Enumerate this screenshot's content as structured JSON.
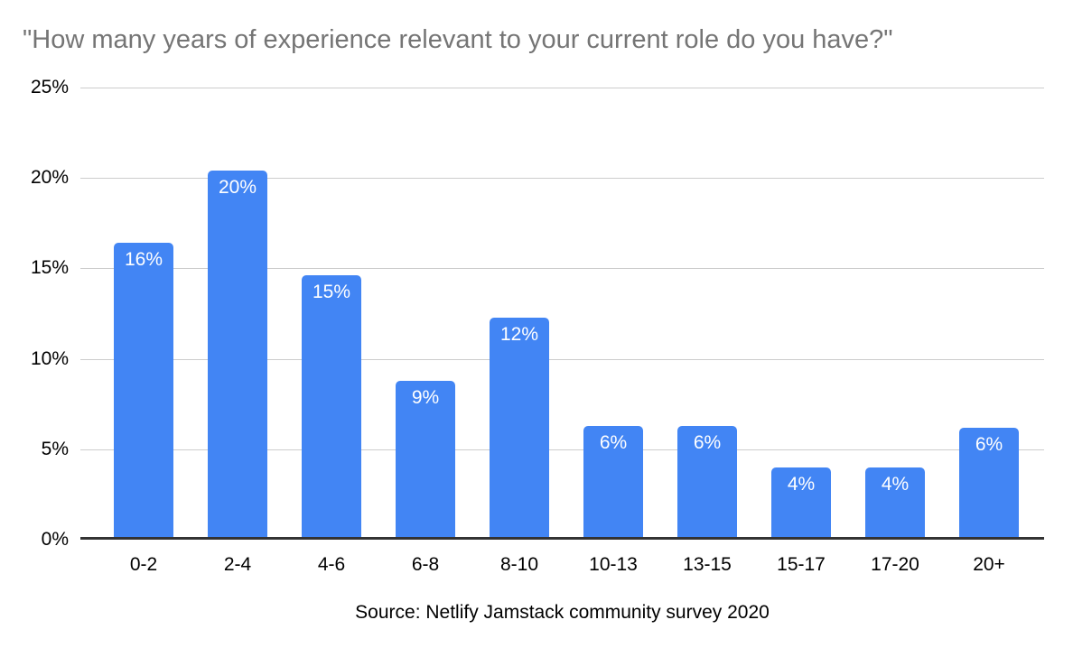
{
  "title": "\"How many years of experience relevant to your current role do you have?\"",
  "source": "Source: Netlify Jamstack community survey 2020",
  "colors": {
    "bar": "#4285f4",
    "title": "#757575",
    "gridline": "#cccccc",
    "axis_line": "#333333",
    "bar_label": "#ffffff",
    "axis_label": "#000000"
  },
  "chart_data": {
    "type": "bar",
    "title": "\"How many years of experience relevant to your current role do you have?\"",
    "categories": [
      "0-2",
      "2-4",
      "4-6",
      "6-8",
      "8-10",
      "10-13",
      "13-15",
      "15-17",
      "17-20",
      "20+"
    ],
    "values": [
      16.4,
      20.4,
      14.6,
      8.8,
      12.3,
      6.3,
      6.3,
      4.0,
      4.0,
      6.2
    ],
    "bar_labels": [
      "16%",
      "20%",
      "15%",
      "9%",
      "12%",
      "6%",
      "6%",
      "4%",
      "4%",
      "6%"
    ],
    "xlabel": "",
    "ylabel": "",
    "ylim": [
      0,
      25
    ],
    "yticks": [
      0,
      5,
      10,
      15,
      20,
      25
    ],
    "ytick_labels": [
      "0%",
      "5%",
      "10%",
      "15%",
      "20%",
      "25%"
    ],
    "grid": true,
    "legend": false,
    "annotation": "Source: Netlify Jamstack community survey 2020"
  }
}
